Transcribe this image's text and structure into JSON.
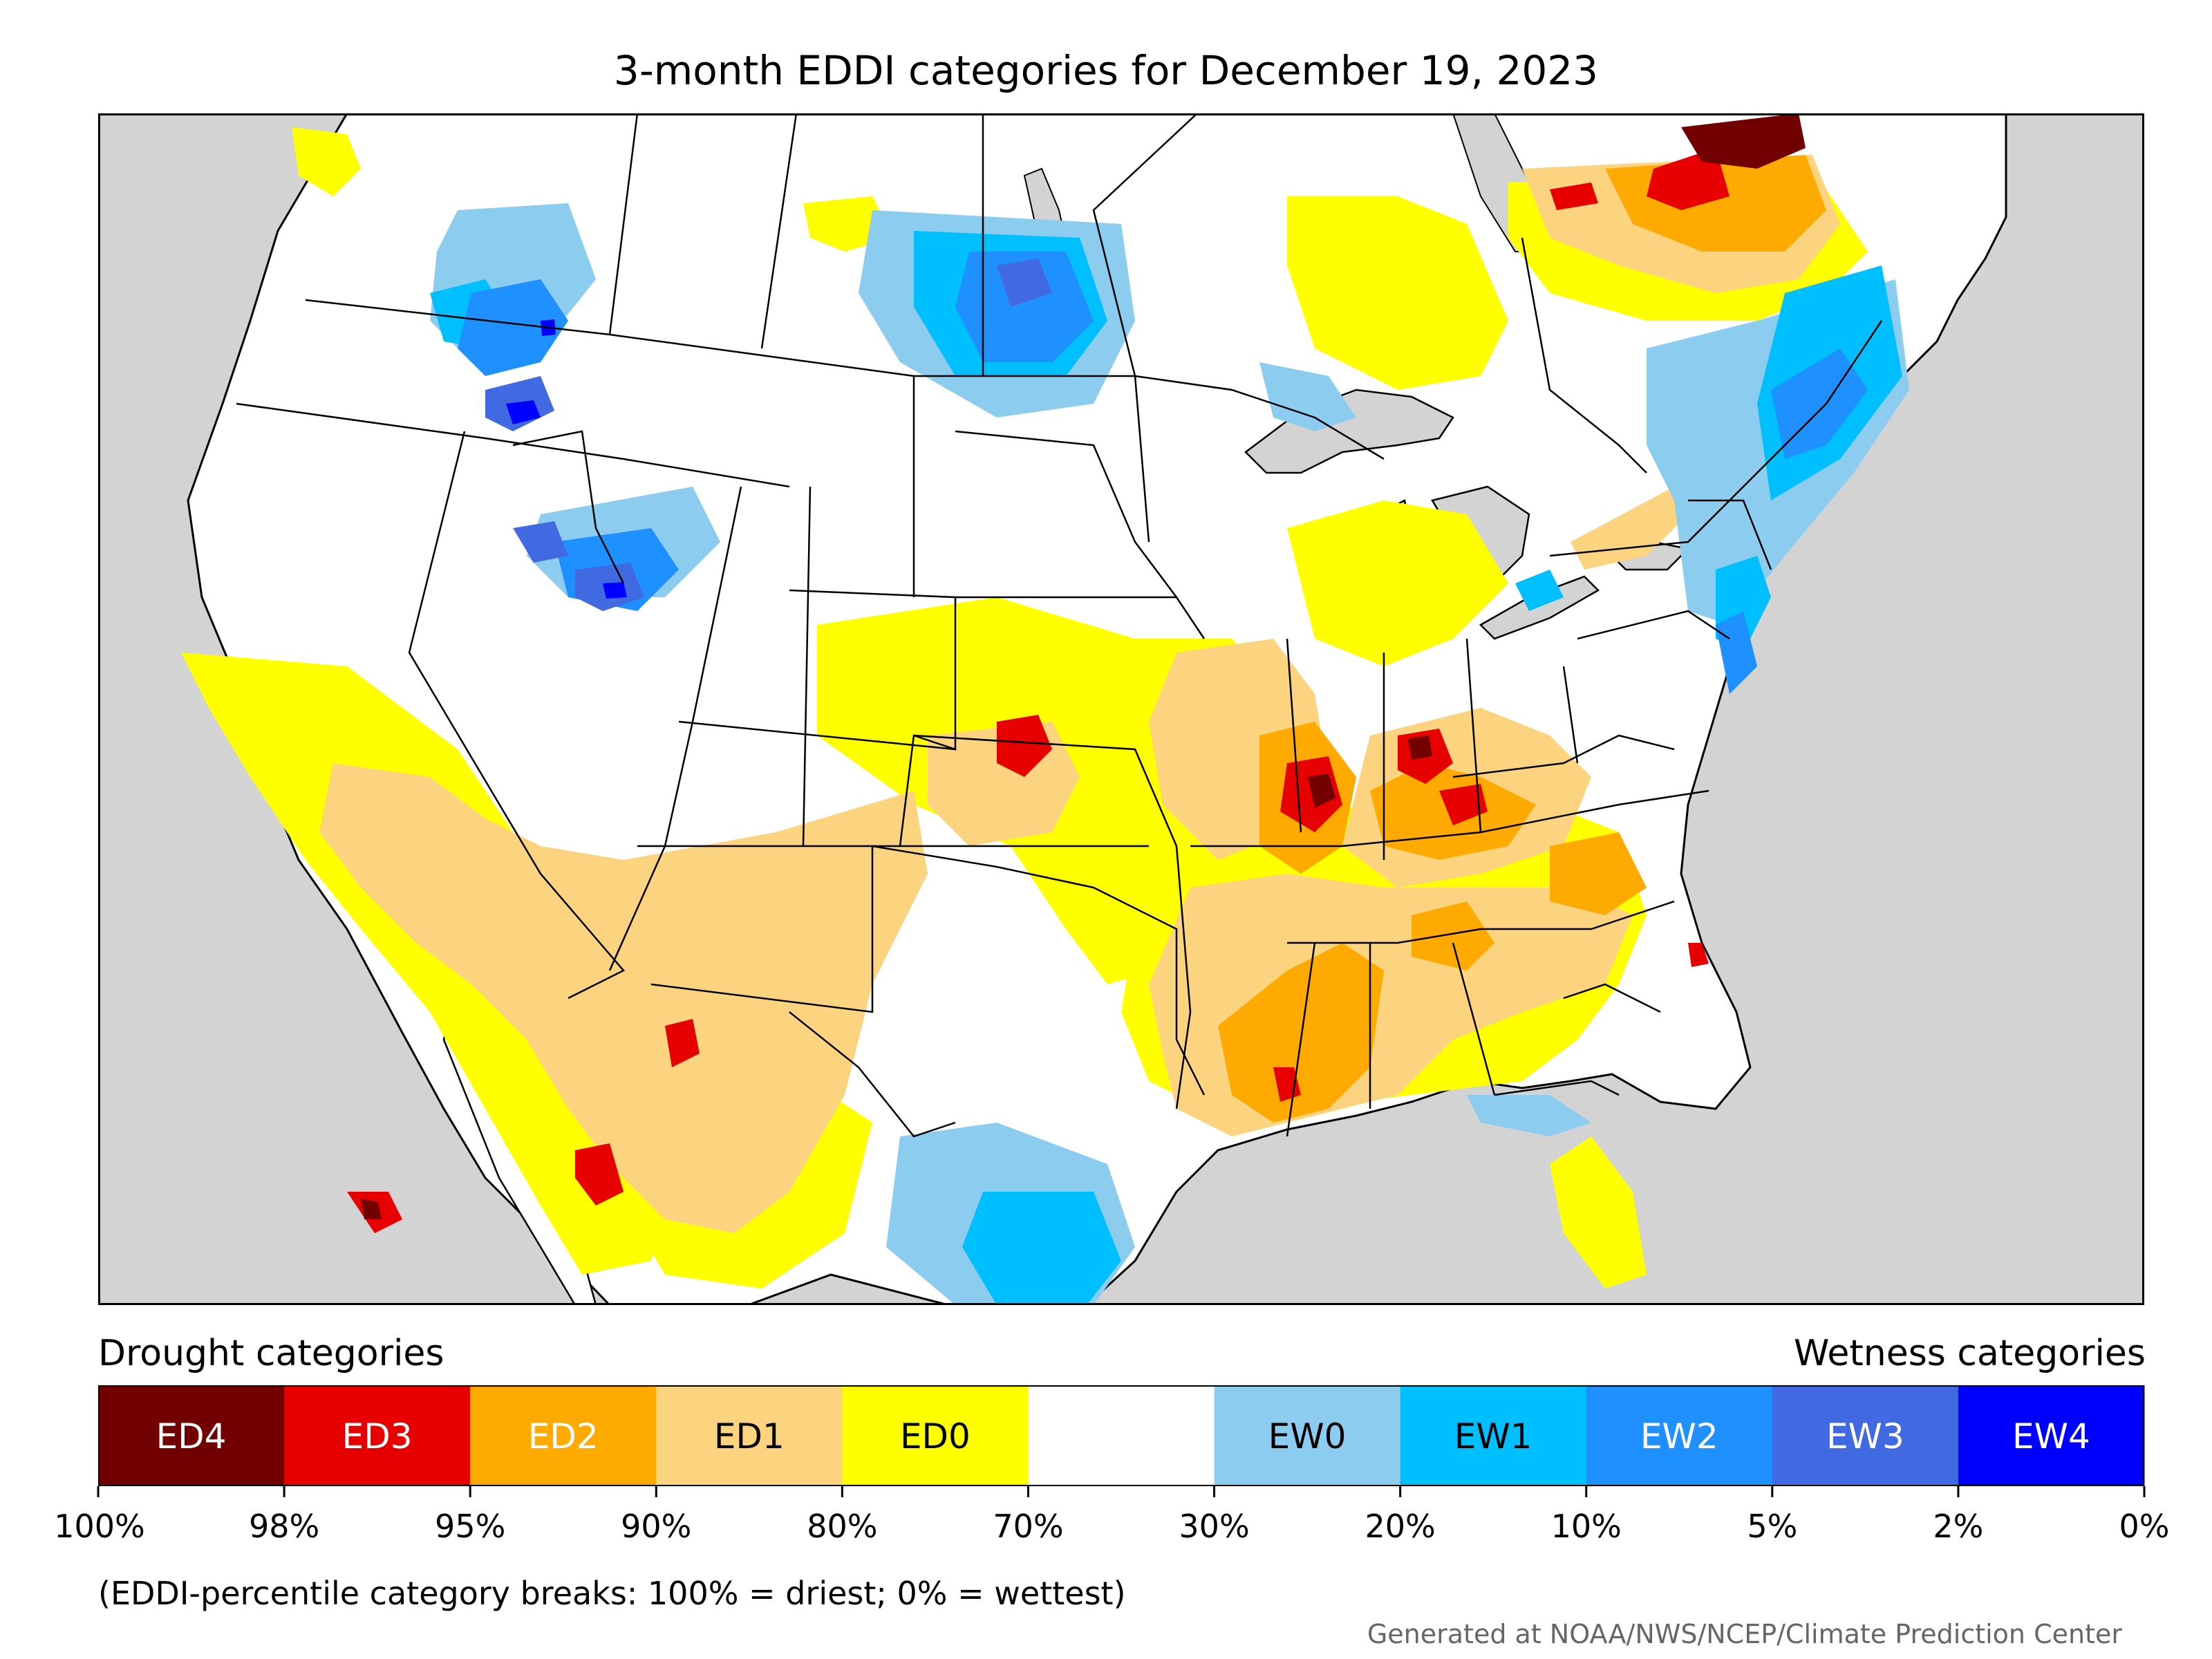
{
  "title": "3-month EDDI categories for December 19, 2023",
  "colors": {
    "ocean_land_mask": "#d3d3d3",
    "border": "#000000",
    "ED4": "#730000",
    "ED3": "#e60000",
    "ED2": "#ffaa00",
    "ED1": "#fcd37f",
    "ED0": "#ffff00",
    "neutral": "#ffffff",
    "EW0": "#8ccdef",
    "EW1": "#00bfff",
    "EW2": "#1e90ff",
    "EW3": "#4169e1",
    "EW4": "#0000ff"
  },
  "legend": {
    "drought_heading": "Drought categories",
    "wetness_heading": "Wetness categories",
    "categories": [
      {
        "label": "ED4",
        "color": "#730000",
        "text_color": "#ffffff"
      },
      {
        "label": "ED3",
        "color": "#e60000",
        "text_color": "#ffffff"
      },
      {
        "label": "ED2",
        "color": "#ffaa00",
        "text_color": "#ffffff"
      },
      {
        "label": "ED1",
        "color": "#fcd37f",
        "text_color": "#000000"
      },
      {
        "label": "ED0",
        "color": "#ffff00",
        "text_color": "#000000"
      },
      {
        "label": "",
        "color": "#ffffff",
        "text_color": "#000000"
      },
      {
        "label": "EW0",
        "color": "#8ccdef",
        "text_color": "#000000"
      },
      {
        "label": "EW1",
        "color": "#00bfff",
        "text_color": "#000000"
      },
      {
        "label": "EW2",
        "color": "#1e90ff",
        "text_color": "#ffffff"
      },
      {
        "label": "EW3",
        "color": "#4169e1",
        "text_color": "#ffffff"
      },
      {
        "label": "EW4",
        "color": "#0000ff",
        "text_color": "#ffffff"
      }
    ],
    "ticks": [
      "100%",
      "98%",
      "95%",
      "90%",
      "80%",
      "70%",
      "30%",
      "20%",
      "10%",
      "5%",
      "2%",
      "0%"
    ]
  },
  "footnote": "(EDDI-percentile category breaks: 100% = driest; 0% = wettest)",
  "credit": "Generated at NOAA/NWS/NCEP/Climate Prediction Center"
}
